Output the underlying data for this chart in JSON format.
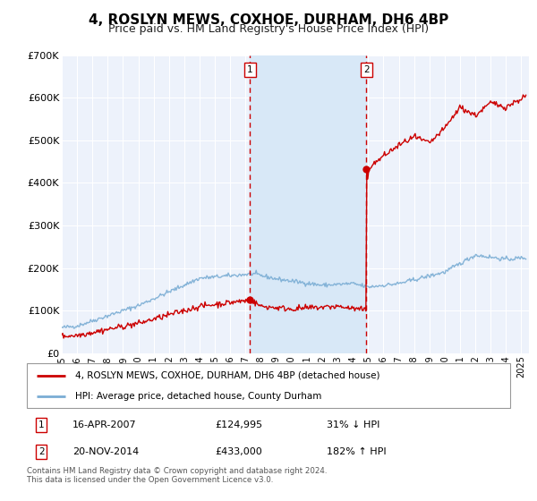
{
  "title": "4, ROSLYN MEWS, COXHOE, DURHAM, DH6 4BP",
  "subtitle": "Price paid vs. HM Land Registry's House Price Index (HPI)",
  "ylim": [
    0,
    700000
  ],
  "yticks": [
    0,
    100000,
    200000,
    300000,
    400000,
    500000,
    600000,
    700000
  ],
  "ytick_labels": [
    "£0",
    "£100K",
    "£200K",
    "£300K",
    "£400K",
    "£500K",
    "£600K",
    "£700K"
  ],
  "xlim_start": 1995.0,
  "xlim_end": 2025.5,
  "plot_bg_color": "#edf2fb",
  "grid_color": "#ffffff",
  "shade_color": "#d8e8f7",
  "red_line_color": "#cc0000",
  "blue_line_color": "#7aadd4",
  "marker1_x": 2007.29,
  "marker1_y": 124995,
  "marker2_x": 2014.89,
  "marker2_y": 433000,
  "vline1_x": 2007.29,
  "vline2_x": 2014.89,
  "legend_label1": "4, ROSLYN MEWS, COXHOE, DURHAM, DH6 4BP (detached house)",
  "legend_label2": "HPI: Average price, detached house, County Durham",
  "table_row1_num": "1",
  "table_row1_date": "16-APR-2007",
  "table_row1_price": "£124,995",
  "table_row1_hpi": "31% ↓ HPI",
  "table_row2_num": "2",
  "table_row2_date": "20-NOV-2014",
  "table_row2_price": "£433,000",
  "table_row2_hpi": "182% ↑ HPI",
  "footer": "Contains HM Land Registry data © Crown copyright and database right 2024.\nThis data is licensed under the Open Government Licence v3.0.",
  "title_fontsize": 11,
  "subtitle_fontsize": 9
}
